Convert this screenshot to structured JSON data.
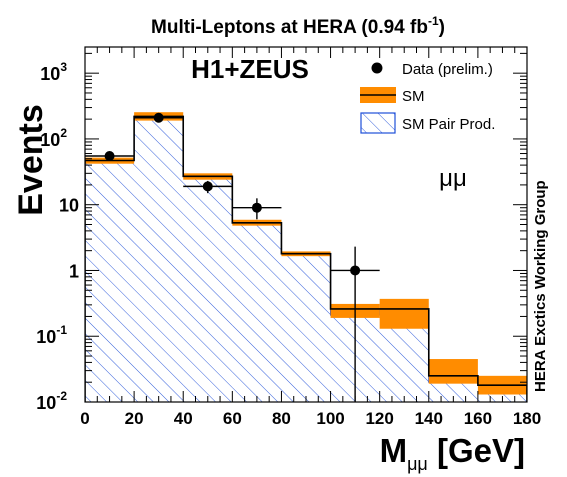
{
  "chart_data": {
    "type": "histogram",
    "title": "Multi-Leptons at HERA (0.94 fb",
    "title_sup": "-1",
    "title_suffix": ")",
    "experiment_label": "H1+ZEUS",
    "channel_label": "μμ",
    "side_label": "HERA Exctics Working Group",
    "ylabel": "Events",
    "xlabel_main": "M",
    "xlabel_sub": "μμ",
    "xlabel_unit": "[GeV]",
    "xlim": [
      0,
      180
    ],
    "ylim": [
      0.01,
      2500
    ],
    "yscale": "log",
    "x_ticks": [
      "0",
      "20",
      "40",
      "60",
      "80",
      "100",
      "120",
      "140",
      "160",
      "180"
    ],
    "y_ticks": [
      {
        "value": 0.01,
        "base": "10",
        "exp": "-2"
      },
      {
        "value": 0.1,
        "base": "10",
        "exp": "-1"
      },
      {
        "value": 1,
        "base": "1",
        "exp": ""
      },
      {
        "value": 10,
        "base": "10",
        "exp": ""
      },
      {
        "value": 100,
        "base": "10",
        "exp": "2"
      },
      {
        "value": 1000,
        "base": "10",
        "exp": "3"
      }
    ],
    "bin_edges": [
      0,
      20,
      40,
      60,
      80,
      100,
      120,
      140,
      160,
      180
    ],
    "series": [
      {
        "name": "SM",
        "values": [
          47,
          220,
          27,
          5.3,
          1.8,
          0.26,
          0.26,
          0.025,
          0.018
        ],
        "band_low": [
          42,
          190,
          24,
          4.8,
          1.65,
          0.19,
          0.13,
          0.019,
          0.013
        ],
        "band_high": [
          52,
          255,
          30,
          5.9,
          1.95,
          0.31,
          0.37,
          0.045,
          0.025
        ],
        "color": "#ff8c00"
      },
      {
        "name": "SM Pair Prod.",
        "values": [
          47,
          220,
          27,
          5.2,
          1.8,
          0.21,
          0.26,
          0.02,
          0.018
        ],
        "color": "#1f4fd8"
      }
    ],
    "data_points": [
      {
        "x": 10,
        "y": 55,
        "ylow": 48,
        "yhigh": 62,
        "xerr": 10
      },
      {
        "x": 30,
        "y": 210,
        "ylow": 196,
        "yhigh": 224,
        "xerr": 10
      },
      {
        "x": 50,
        "y": 19,
        "ylow": 15,
        "yhigh": 23,
        "xerr": 10
      },
      {
        "x": 70,
        "y": 9,
        "ylow": 6,
        "yhigh": 12.5,
        "xerr": 10
      },
      {
        "x": 110,
        "y": 1,
        "ylow": 0.01,
        "yhigh": 2.3,
        "xerr": 10
      }
    ],
    "legend": [
      {
        "label": "Data (prelim.)",
        "kind": "marker"
      },
      {
        "label": "SM",
        "kind": "band"
      },
      {
        "label": "SM Pair Prod.",
        "kind": "hatch"
      }
    ],
    "legend_position": "top-right",
    "colors": {
      "sm_band": "#ff8c00",
      "hatch": "#1f4fd8",
      "axis": "#000000"
    }
  }
}
